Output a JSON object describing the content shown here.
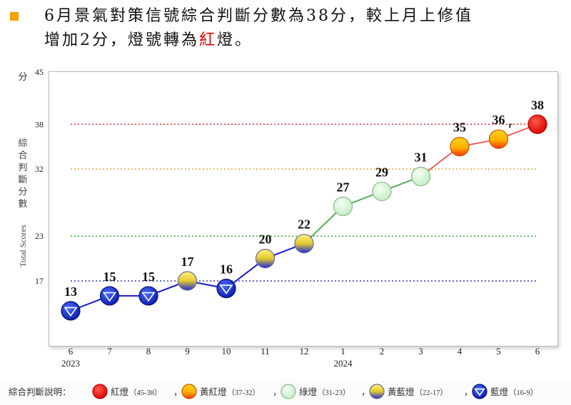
{
  "headline": {
    "line1": "6月景氣對策信號綜合判斷分數為38分，較上月上修值",
    "line2_a": "增加2分，燈號轉為",
    "line2_red": "紅",
    "line2_b": "燈。"
  },
  "colors": {
    "bullet": "#f5a000",
    "red_light": "#e00000",
    "yellow_red_light": "#f5a000",
    "green_light": "#c8f0c8",
    "yellow_blue_light": "#e8e070",
    "blue_light": "#1a2fd0"
  },
  "chart_data": {
    "type": "line",
    "ylabel_unit": "分",
    "ylabel_cn": "綜合判斷分數",
    "ylabel_en": "Total Scores",
    "ylim": [
      10,
      45
    ],
    "yticks": [
      17,
      23,
      32,
      38,
      45
    ],
    "thresholds": [
      {
        "value": 38,
        "color": "#e03030"
      },
      {
        "value": 32,
        "color": "#d9a030"
      },
      {
        "value": 23,
        "color": "#30a030"
      },
      {
        "value": 17,
        "color": "#3030c0"
      }
    ],
    "categories": [
      "6",
      "7",
      "8",
      "9",
      "10",
      "11",
      "12",
      "1",
      "2",
      "3",
      "4",
      "5",
      "6"
    ],
    "year_labels": [
      {
        "index": 0,
        "text": "2023"
      },
      {
        "index": 7,
        "text": "2024"
      }
    ],
    "values": [
      13,
      15,
      15,
      17,
      16,
      20,
      22,
      27,
      29,
      31,
      35,
      36,
      38
    ],
    "value_labels": [
      "13",
      "15",
      "15",
      "17",
      "16",
      "20",
      "22",
      "27",
      "29",
      "31",
      "35",
      "36",
      "38"
    ],
    "revised_marks": [
      "",
      "",
      "",
      "",
      "",
      "",
      "",
      "",
      "",
      "",
      "",
      "r",
      ""
    ],
    "signals": [
      "blue",
      "blue",
      "blue",
      "yellow-blue",
      "blue",
      "yellow-blue",
      "yellow-blue",
      "green",
      "green",
      "green",
      "yellow-red",
      "yellow-red",
      "red"
    ],
    "legend_title": "綜合判斷說明：",
    "legend": [
      {
        "signal": "red",
        "label": "紅燈",
        "range": "（45-38）"
      },
      {
        "signal": "yellow-red",
        "label": "黃紅燈",
        "range": "（37-32）"
      },
      {
        "signal": "green",
        "label": "綠燈",
        "range": "（31-23）"
      },
      {
        "signal": "yellow-blue",
        "label": "黃藍燈",
        "range": "（22-17）"
      },
      {
        "signal": "blue",
        "label": "藍燈",
        "range": "（16-9）"
      }
    ],
    "legend_sep": "，"
  }
}
